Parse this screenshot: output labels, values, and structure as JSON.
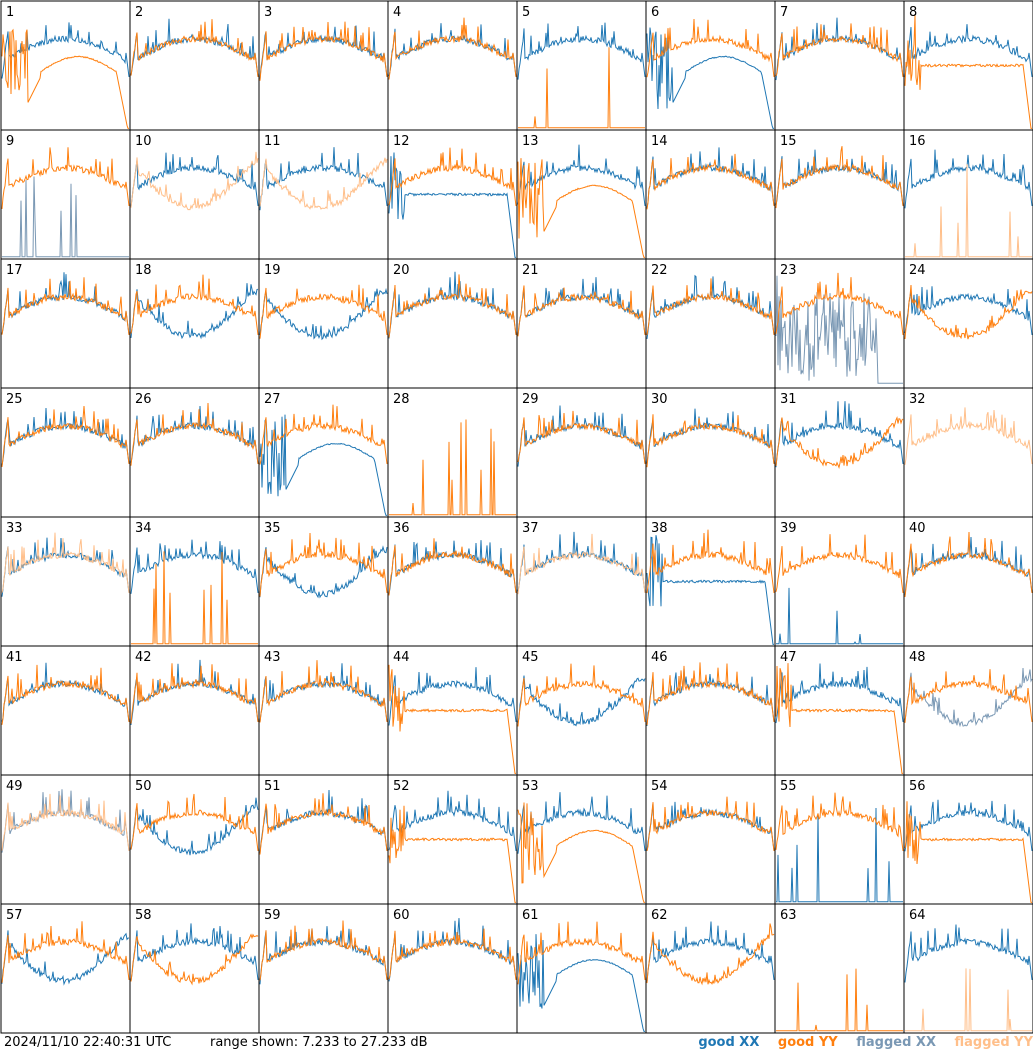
{
  "chart_data": {
    "type": "line",
    "grid": {
      "rows": 8,
      "cols": 8
    },
    "y_range_db": [
      7.233,
      27.233
    ],
    "panels": [
      {
        "label": "1",
        "xx": "good",
        "yy": "good",
        "xx_shape": "normal",
        "yy_shape": "rolloff"
      },
      {
        "label": "2",
        "xx": "good",
        "yy": "good",
        "xx_shape": "normal",
        "yy_shape": "normal"
      },
      {
        "label": "3",
        "xx": "good",
        "yy": "good",
        "xx_shape": "normal",
        "yy_shape": "normal"
      },
      {
        "label": "4",
        "xx": "good",
        "yy": "good",
        "xx_shape": "normal",
        "yy_shape": "normal"
      },
      {
        "label": "5",
        "xx": "good",
        "yy": "good",
        "xx_shape": "normal",
        "yy_shape": "dead"
      },
      {
        "label": "6",
        "xx": "good",
        "yy": "good",
        "xx_shape": "rolloff",
        "yy_shape": "normal"
      },
      {
        "label": "7",
        "xx": "good",
        "yy": "good",
        "xx_shape": "normal",
        "yy_shape": "normal"
      },
      {
        "label": "8",
        "xx": "good",
        "yy": "good",
        "xx_shape": "normal",
        "yy_shape": "flat"
      },
      {
        "label": "9",
        "xx": "flagged",
        "yy": "good",
        "xx_shape": "dead",
        "yy_shape": "normal"
      },
      {
        "label": "10",
        "xx": "good",
        "yy": "flagged",
        "xx_shape": "normal",
        "yy_shape": "low"
      },
      {
        "label": "11",
        "xx": "good",
        "yy": "flagged",
        "xx_shape": "normal",
        "yy_shape": "low"
      },
      {
        "label": "12",
        "xx": "good",
        "yy": "good",
        "xx_shape": "flat",
        "yy_shape": "normal"
      },
      {
        "label": "13",
        "xx": "good",
        "yy": "good",
        "xx_shape": "normal",
        "yy_shape": "rolloff"
      },
      {
        "label": "14",
        "xx": "good",
        "yy": "good",
        "xx_shape": "normal",
        "yy_shape": "normal"
      },
      {
        "label": "15",
        "xx": "good",
        "yy": "good",
        "xx_shape": "normal",
        "yy_shape": "normal"
      },
      {
        "label": "16",
        "xx": "good",
        "yy": "flagged",
        "xx_shape": "normal",
        "yy_shape": "dead"
      },
      {
        "label": "17",
        "xx": "good",
        "yy": "good",
        "xx_shape": "normal",
        "yy_shape": "normal"
      },
      {
        "label": "18",
        "xx": "good",
        "yy": "good",
        "xx_shape": "low",
        "yy_shape": "normal"
      },
      {
        "label": "19",
        "xx": "good",
        "yy": "good",
        "xx_shape": "low",
        "yy_shape": "normal"
      },
      {
        "label": "20",
        "xx": "good",
        "yy": "good",
        "xx_shape": "normal",
        "yy_shape": "normal"
      },
      {
        "label": "21",
        "xx": "good",
        "yy": "good",
        "xx_shape": "normal",
        "yy_shape": "normal"
      },
      {
        "label": "22",
        "xx": "good",
        "yy": "good",
        "xx_shape": "normal",
        "yy_shape": "normal"
      },
      {
        "label": "23",
        "xx": "flagged",
        "yy": "good",
        "xx_shape": "noisy",
        "yy_shape": "normal"
      },
      {
        "label": "24",
        "xx": "good",
        "yy": "good",
        "xx_shape": "normal",
        "yy_shape": "low"
      },
      {
        "label": "25",
        "xx": "good",
        "yy": "good",
        "xx_shape": "normal",
        "yy_shape": "normal"
      },
      {
        "label": "26",
        "xx": "good",
        "yy": "good",
        "xx_shape": "normal",
        "yy_shape": "normal"
      },
      {
        "label": "27",
        "xx": "good",
        "yy": "good",
        "xx_shape": "rolloff",
        "yy_shape": "normal"
      },
      {
        "label": "28",
        "xx": "good",
        "yy": "good",
        "xx_shape": "none",
        "yy_shape": "dead"
      },
      {
        "label": "29",
        "xx": "good",
        "yy": "good",
        "xx_shape": "normal",
        "yy_shape": "normal"
      },
      {
        "label": "30",
        "xx": "good",
        "yy": "good",
        "xx_shape": "normal",
        "yy_shape": "normal"
      },
      {
        "label": "31",
        "xx": "good",
        "yy": "good",
        "xx_shape": "normal",
        "yy_shape": "low"
      },
      {
        "label": "32",
        "xx": "good",
        "yy": "flagged",
        "xx_shape": "none",
        "yy_shape": "normal"
      },
      {
        "label": "33",
        "xx": "good",
        "yy": "flagged",
        "xx_shape": "normal",
        "yy_shape": "normal"
      },
      {
        "label": "34",
        "xx": "good",
        "yy": "good",
        "xx_shape": "normal",
        "yy_shape": "dead"
      },
      {
        "label": "35",
        "xx": "good",
        "yy": "good",
        "xx_shape": "low",
        "yy_shape": "normal"
      },
      {
        "label": "36",
        "xx": "good",
        "yy": "good",
        "xx_shape": "normal",
        "yy_shape": "normal"
      },
      {
        "label": "37",
        "xx": "good",
        "yy": "flagged",
        "xx_shape": "normal",
        "yy_shape": "normal"
      },
      {
        "label": "38",
        "xx": "good",
        "yy": "good",
        "xx_shape": "flat",
        "yy_shape": "normal"
      },
      {
        "label": "39",
        "xx": "good",
        "yy": "good",
        "xx_shape": "dead",
        "yy_shape": "normal"
      },
      {
        "label": "40",
        "xx": "good",
        "yy": "good",
        "xx_shape": "normal",
        "yy_shape": "normal"
      },
      {
        "label": "41",
        "xx": "good",
        "yy": "good",
        "xx_shape": "normal",
        "yy_shape": "normal"
      },
      {
        "label": "42",
        "xx": "good",
        "yy": "good",
        "xx_shape": "normal",
        "yy_shape": "normal"
      },
      {
        "label": "43",
        "xx": "good",
        "yy": "good",
        "xx_shape": "normal",
        "yy_shape": "normal"
      },
      {
        "label": "44",
        "xx": "good",
        "yy": "good",
        "xx_shape": "normal",
        "yy_shape": "flat"
      },
      {
        "label": "45",
        "xx": "good",
        "yy": "good",
        "xx_shape": "low",
        "yy_shape": "normal"
      },
      {
        "label": "46",
        "xx": "good",
        "yy": "good",
        "xx_shape": "normal",
        "yy_shape": "normal"
      },
      {
        "label": "47",
        "xx": "good",
        "yy": "good",
        "xx_shape": "normal",
        "yy_shape": "flat"
      },
      {
        "label": "48",
        "xx": "flagged",
        "yy": "good",
        "xx_shape": "low",
        "yy_shape": "normal"
      },
      {
        "label": "49",
        "xx": "flagged",
        "yy": "flagged",
        "xx_shape": "normal",
        "yy_shape": "normal"
      },
      {
        "label": "50",
        "xx": "good",
        "yy": "good",
        "xx_shape": "low",
        "yy_shape": "normal"
      },
      {
        "label": "51",
        "xx": "good",
        "yy": "good",
        "xx_shape": "normal",
        "yy_shape": "normal"
      },
      {
        "label": "52",
        "xx": "good",
        "yy": "good",
        "xx_shape": "normal",
        "yy_shape": "flat"
      },
      {
        "label": "53",
        "xx": "good",
        "yy": "good",
        "xx_shape": "normal",
        "yy_shape": "rolloff"
      },
      {
        "label": "54",
        "xx": "good",
        "yy": "good",
        "xx_shape": "normal",
        "yy_shape": "normal"
      },
      {
        "label": "55",
        "xx": "good",
        "yy": "good",
        "xx_shape": "dead",
        "yy_shape": "normal"
      },
      {
        "label": "56",
        "xx": "good",
        "yy": "good",
        "xx_shape": "normal",
        "yy_shape": "flat"
      },
      {
        "label": "57",
        "xx": "good",
        "yy": "good",
        "xx_shape": "low",
        "yy_shape": "normal"
      },
      {
        "label": "58",
        "xx": "good",
        "yy": "good",
        "xx_shape": "normal",
        "yy_shape": "low"
      },
      {
        "label": "59",
        "xx": "good",
        "yy": "good",
        "xx_shape": "normal",
        "yy_shape": "normal"
      },
      {
        "label": "60",
        "xx": "good",
        "yy": "good",
        "xx_shape": "normal",
        "yy_shape": "normal"
      },
      {
        "label": "61",
        "xx": "good",
        "yy": "good",
        "xx_shape": "rolloff",
        "yy_shape": "normal"
      },
      {
        "label": "62",
        "xx": "good",
        "yy": "good",
        "xx_shape": "normal",
        "yy_shape": "low"
      },
      {
        "label": "63",
        "xx": "good",
        "yy": "good",
        "xx_shape": "none",
        "yy_shape": "dead"
      },
      {
        "label": "64",
        "xx": "good",
        "yy": "flagged",
        "xx_shape": "normal",
        "yy_shape": "dead"
      }
    ]
  },
  "footer": {
    "timestamp": "2024/11/10 22:40:31 UTC",
    "range_text": "range shown: 7.233 to 27.233 dB"
  },
  "legend": [
    {
      "label": "good XX",
      "color": "#1f77b4"
    },
    {
      "label": "good YY",
      "color": "#ff7f0e"
    },
    {
      "label": "flagged XX",
      "color": "#7a98b4"
    },
    {
      "label": "flagged YY",
      "color": "#ffbf8a"
    }
  ],
  "colors": {
    "good_xx": "#1f77b4",
    "good_yy": "#ff7f0e",
    "flagged_xx": "#7a98b4",
    "flagged_yy": "#ffbf8a"
  }
}
